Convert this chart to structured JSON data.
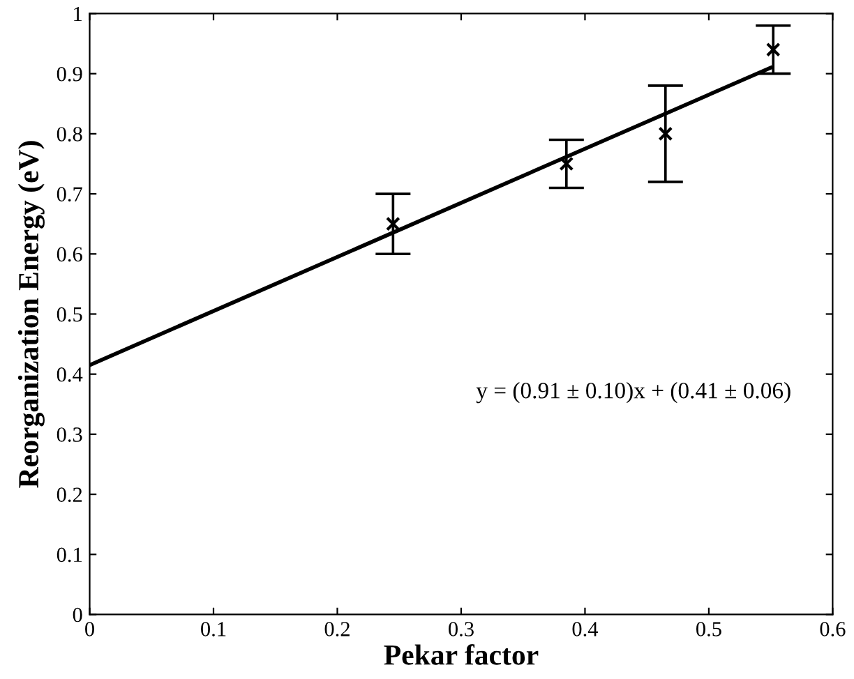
{
  "chart_data": {
    "type": "scatter",
    "xlabel": "Pekar factor",
    "ylabel": "Reorganization Energy (eV)",
    "xlim": [
      0,
      0.6
    ],
    "ylim": [
      0,
      1
    ],
    "xticks": [
      0,
      0.1,
      0.2,
      0.3,
      0.4,
      0.5,
      0.6
    ],
    "yticks": [
      0,
      0.1,
      0.2,
      0.3,
      0.4,
      0.5,
      0.6,
      0.7,
      0.8,
      0.9,
      1
    ],
    "grid": false,
    "legend": false,
    "series": [
      {
        "marker": "cross",
        "color": "#000000",
        "x": [
          0.245,
          0.385,
          0.465,
          0.552
        ],
        "values": [
          0.65,
          0.75,
          0.8,
          0.94
        ],
        "errors": [
          [
            0.6,
            0.7
          ],
          [
            0.71,
            0.79
          ],
          [
            0.72,
            0.88
          ],
          [
            0.9,
            0.98
          ]
        ]
      },
      {
        "type": "line",
        "marker": "none",
        "line_style": "solid",
        "color": "#000000",
        "x": [
          0,
          0.55
        ],
        "values": [
          0.415,
          0.91
        ]
      }
    ],
    "annotations": [
      "y = (0.91 ± 0.10)x + (0.41 ± 0.06)"
    ]
  }
}
